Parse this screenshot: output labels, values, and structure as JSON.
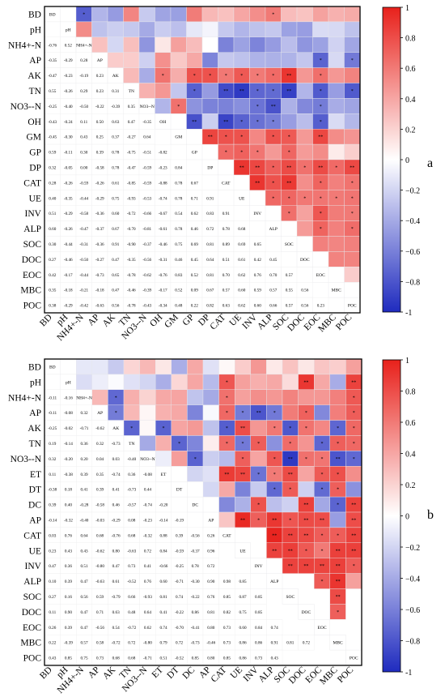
{
  "chart_data": [
    {
      "type": "heatmap",
      "panel": "a",
      "variables": [
        "BD",
        "pH",
        "NH4+-N",
        "AP",
        "AK",
        "TN",
        "NO3--N",
        "OH",
        "GM",
        "GP",
        "DP",
        "CAT",
        "UE",
        "INV",
        "ALP",
        "SOC",
        "DOC",
        "EOC",
        "MBC",
        "POC"
      ],
      "lower_triangle_values": {
        "NH4+-N": [
          -0.76,
          0.52
        ],
        "AP": [
          -0.35,
          -0.29,
          0.28
        ],
        "AK": [
          -0.47,
          -0.23,
          -0.19,
          0.23
        ],
        "TN": [
          0.55,
          -0.26,
          0.29,
          0.23,
          0.31
        ],
        "NO3--N": [
          -0.25,
          -0.4,
          -0.5,
          -0.22,
          -0.39,
          0.35
        ],
        "OH": [
          -0.43,
          -0.24,
          0.11,
          0.5,
          0.63,
          0.47,
          -0.35
        ],
        "GM": [
          -0.45,
          -0.3,
          0.43,
          0.25,
          0.37,
          -0.27,
          0.64
        ],
        "GP": [
          0.59,
          -0.11,
          0.3,
          0.39,
          0.78,
          -0.75,
          -0.51,
          -0.82
        ],
        "DP": [
          0.32,
          -0.05,
          0.0,
          -0.58,
          0.78,
          -0.47,
          -0.59,
          -0.23,
          0.84
        ],
        "CAT": [
          0.28,
          -0.26,
          -0.59,
          -0.26,
          0.61,
          -0.85,
          -0.59,
          -0.88,
          0.78,
          0.67
        ],
        "UE": [
          0.4,
          -0.35,
          -0.44,
          -0.29,
          0.75,
          -0.93,
          -0.53,
          -0.74,
          0.78,
          0.71,
          0.91
        ],
        "INV": [
          0.51,
          -0.29,
          -0.58,
          -0.36,
          0.6,
          -0.72,
          -0.66,
          -0.67,
          0.54,
          0.62,
          0.83,
          0.91
        ],
        "ALP": [
          0.6,
          -0.26,
          -0.47,
          -0.37,
          0.67,
          -0.7,
          -0.81,
          -0.61,
          0.78,
          0.46,
          0.72,
          0.78,
          0.68
        ],
        "SOC": [
          0.3,
          -0.44,
          -0.31,
          -0.36,
          0.91,
          -0.9,
          -0.37,
          -0.46,
          0.75,
          0.69,
          0.81,
          0.89,
          0.69,
          0.65
        ],
        "DOC": [
          0.27,
          -0.46,
          -0.5,
          -0.27,
          0.47,
          -0.35,
          -0.56,
          -0.31,
          0.46,
          0.45,
          0.64,
          0.51,
          0.61,
          0.42,
          0.45
        ],
        "EOC": [
          0.42,
          -0.17,
          -0.44,
          -0.73,
          0.65,
          -0.78,
          -0.62,
          -0.76,
          0.83,
          0.52,
          0.81,
          0.7,
          0.62,
          0.76,
          0.7,
          0.57
        ],
        "MBC": [
          0.35,
          -0.18,
          -0.21,
          -0.18,
          0.47,
          -0.46,
          -0.39,
          -0.17,
          0.52,
          0.09,
          0.67,
          0.57,
          0.6,
          0.59,
          0.57,
          0.55,
          0.56
        ],
        "POC": [
          0.38,
          -0.29,
          -0.42,
          -0.63,
          0.56,
          -0.78,
          -0.43,
          -0.34,
          0.48,
          0.22,
          0.82,
          0.63,
          0.62,
          0.6,
          0.66,
          0.57,
          0.56,
          0.23
        ]
      },
      "colorbar": {
        "min": -1,
        "max": 1,
        "ticks": [
          1,
          0.8,
          0.6,
          0.4,
          0.2,
          0,
          -0.2,
          -0.4,
          -0.6,
          -0.8,
          -1
        ]
      }
    },
    {
      "type": "heatmap",
      "panel": "b",
      "variables": [
        "BD",
        "pH",
        "NH4+-N",
        "AP",
        "AK",
        "TN",
        "NO3--N",
        "ET",
        "DT",
        "DC",
        "AP",
        "CAT",
        "UE",
        "INV",
        "ALP",
        "SOC",
        "DOC",
        "EOC",
        "MBC",
        "POC"
      ],
      "lower_triangle_values": {
        "NH4+-N": [
          -0.11,
          -0.16
        ],
        "AP": [
          -0.11,
          -0.08,
          0.32
        ],
        "AK": [
          -0.25,
          -0.02,
          -0.71,
          -0.62
        ],
        "TN": [
          0.19,
          -0.14,
          0.36,
          0.32,
          -0.73
        ],
        "NO3--N": [
          0.32,
          -0.2,
          0.2,
          0.04,
          0.03,
          -0.4
        ],
        "ET": [
          0.11,
          -0.38,
          0.39,
          0.35,
          -0.74,
          0.36,
          -0.08
        ],
        "DT": [
          -0.38,
          0.18,
          0.41,
          0.39,
          0.41,
          -0.73,
          0.44
        ],
        "DC": [
          0.39,
          0.4,
          -0.28,
          -0.58,
          0.46,
          -0.57,
          -0.74,
          -0.2
        ],
        "AP2": [
          -0.14,
          -0.32,
          -0.4,
          -0.03,
          -0.29,
          0.08,
          -0.23,
          -0.14,
          -0.19
        ],
        "CAT": [
          0.03,
          0.76,
          0.64,
          0.68,
          -0.76,
          0.68,
          -0.32,
          0.88,
          0.39,
          -0.56,
          0.26
        ],
        "UE": [
          0.23,
          0.43,
          0.43,
          -0.62,
          0.8,
          -0.63,
          0.72,
          0.84,
          -0.59,
          -0.37,
          0.96
        ],
        "INV": [
          0.47,
          0.36,
          0.51,
          -0.8,
          0.47,
          0.73,
          0.41,
          -0.66,
          -0.25,
          0.78,
          0.72
        ],
        "ALP": [
          0.1,
          0.39,
          0.47,
          -0.63,
          0.61,
          -0.52,
          0.76,
          0.6,
          -0.71,
          -0.3,
          0.9,
          0.98,
          0.85
        ],
        "SOC": [
          0.27,
          0.16,
          0.56,
          0.59,
          -0.79,
          0.66,
          -0.93,
          0.81,
          0.74,
          -0.22,
          0.76,
          0.85,
          0.87,
          0.85
        ],
        "DOC": [
          0.11,
          0.9,
          0.47,
          0.71,
          0.63,
          0.48,
          0.64,
          0.41,
          -0.22,
          0.86,
          0.81,
          0.82,
          0.75,
          0.85
        ],
        "EOC": [
          0.26,
          0.39,
          0.47,
          -0.56,
          0.54,
          -0.72,
          0.62,
          0.74,
          -0.7,
          -0.41,
          0.8,
          0.73,
          0.6,
          0.84,
          0.74
        ],
        "MBC": [
          0.22,
          -0.39,
          0.57,
          0.58,
          -0.72,
          0.72,
          -0.8,
          0.79,
          0.72,
          -0.73,
          -0.46,
          0.73,
          0.86,
          0.86,
          0.91,
          0.81,
          0.72
        ],
        "POC": [
          0.43,
          0.85,
          0.75,
          0.73,
          0.68,
          0.68,
          -0.71,
          0.51,
          -0.52,
          0.85,
          0.8,
          0.85,
          0.86,
          0.73,
          0.43
        ]
      },
      "colorbar": {
        "min": -1,
        "max": 1,
        "ticks": [
          1,
          0.8,
          0.6,
          0.4,
          0.2,
          0,
          -0.2,
          -0.4,
          -0.6,
          -0.8,
          -1
        ]
      }
    }
  ],
  "panels": {
    "a": {
      "letter": "a"
    },
    "b": {
      "letter": "b"
    }
  },
  "colors": {
    "positive": "#e8211b",
    "negative": "#1f2bbf",
    "neutral": "#ffffff"
  }
}
